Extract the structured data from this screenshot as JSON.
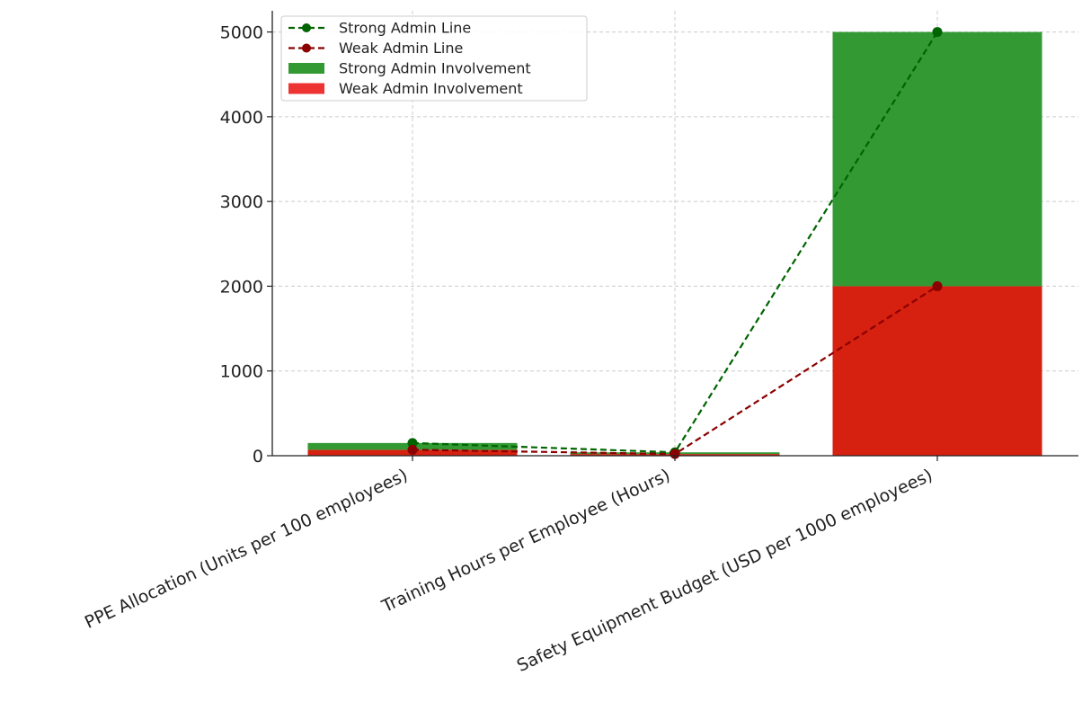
{
  "chart_data": {
    "type": "bar",
    "stacked": true,
    "categories": [
      "PPE Allocation (Units per 100 employees)",
      "Training Hours per Employee (Hours)",
      "Safety Equipment Budget (USD per 1000 employees)"
    ],
    "series": [
      {
        "name": "Weak Admin Involvement",
        "type": "bar",
        "values": [
          70,
          20,
          2000
        ],
        "color": "#d62010"
      },
      {
        "name": "Strong Admin Involvement",
        "type": "bar",
        "values": [
          80,
          20,
          3000
        ],
        "color": "#339933"
      },
      {
        "name": "Strong Admin Line",
        "type": "line",
        "style": "dashed",
        "marker": "circle",
        "values": [
          150,
          40,
          5000
        ],
        "color": "#006400"
      },
      {
        "name": "Weak Admin Line",
        "type": "line",
        "style": "dashed",
        "marker": "circle",
        "values": [
          70,
          20,
          2000
        ],
        "color": "#8b0000"
      }
    ],
    "yticks": [
      "0",
      "1000",
      "2000",
      "3000",
      "4000",
      "5000"
    ],
    "ylim": [
      0,
      5250
    ],
    "grid": true,
    "legend_position": "top-left",
    "legend": [
      {
        "label": "Strong Admin Line",
        "kind": "line",
        "color": "#006400"
      },
      {
        "label": "Weak Admin Line",
        "kind": "line",
        "color": "#8b0000"
      },
      {
        "label": "Strong Admin Involvement",
        "kind": "patch",
        "color": "#339933"
      },
      {
        "label": "Weak Admin Involvement",
        "kind": "patch",
        "color": "#ee3333"
      }
    ]
  }
}
